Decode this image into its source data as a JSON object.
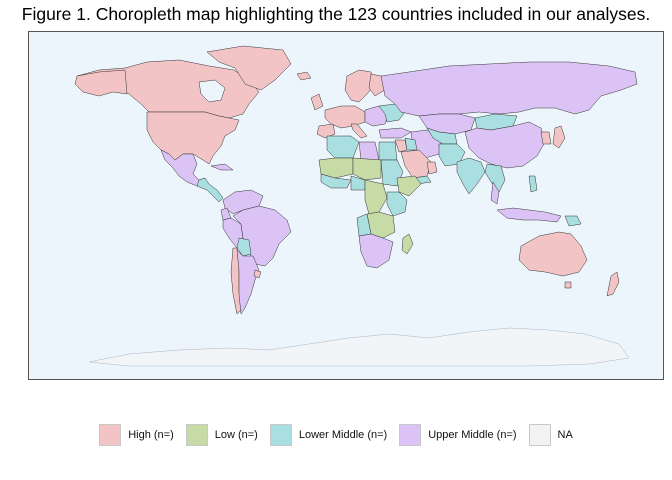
{
  "title": "Figure 1. Choropleth map highlighting the 123 countries included in our analyses.",
  "legend": [
    {
      "key": "high",
      "label": "High (n=)",
      "color": "#f2c4c6"
    },
    {
      "key": "low",
      "label": "Low (n=)",
      "color": "#c6dba5"
    },
    {
      "key": "lower_middle",
      "label": "Lower Middle (n=)",
      "color": "#a9dfe0"
    },
    {
      "key": "upper_middle",
      "label": "Upper Middle (n=)",
      "color": "#dcc3f5"
    },
    {
      "key": "na",
      "label": "NA",
      "color": "#f3f3f3"
    }
  ],
  "map": {
    "ocean_color": "#edf5fc",
    "border_color": "#333333",
    "antarctica_color": "#f1f5f8"
  }
}
